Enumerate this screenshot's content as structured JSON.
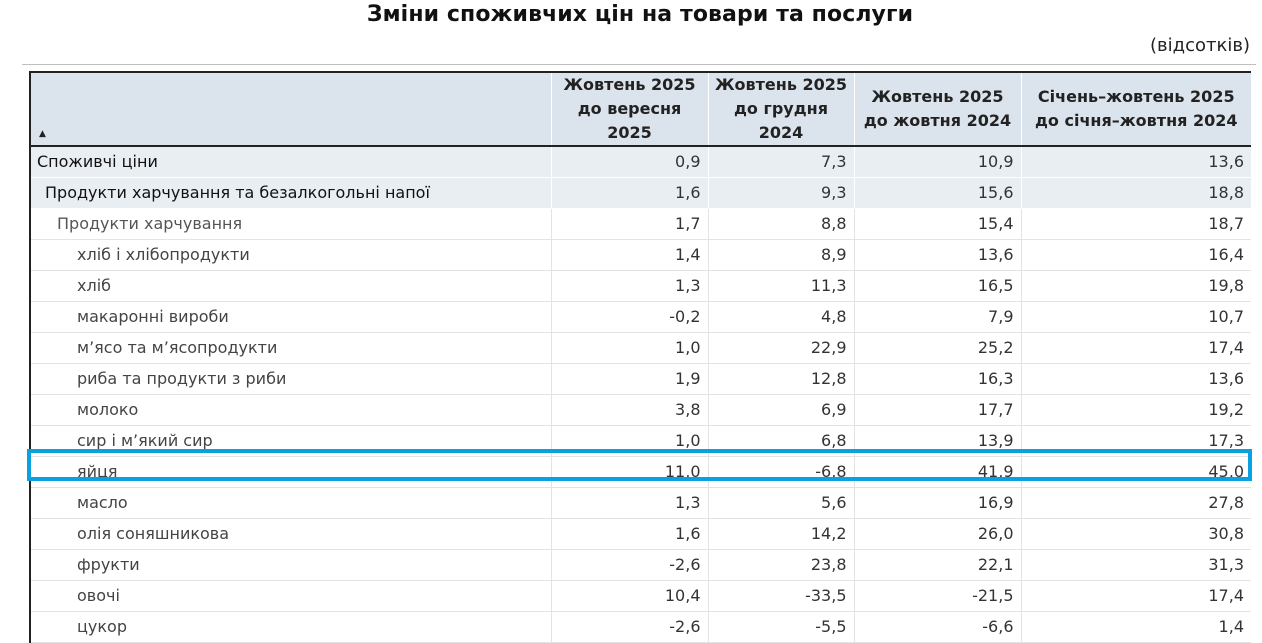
{
  "title": "Зміни споживчих цін на товари та послуги",
  "unit": "(відсотків)",
  "table": {
    "sort_icon": "sort-ascending-icon",
    "columns": [
      "Жовтень 2025 до вересня 2025",
      "Жовтень 2025 до грудня 2024",
      "Жовтень 2025 до жовтня 2024",
      "Січень–жовтень 2025 до січня–жовтня 2024"
    ],
    "rows": [
      {
        "name": "Споживчі ціни",
        "level": 0,
        "values": [
          "0,9",
          "7,3",
          "10,9",
          "13,6"
        ]
      },
      {
        "name": "Продукти харчування та безалкогольні напої",
        "level": 1,
        "values": [
          "1,6",
          "9,3",
          "15,6",
          "18,8"
        ]
      },
      {
        "name": "Продукти харчування",
        "level": 2,
        "values": [
          "1,7",
          "8,8",
          "15,4",
          "18,7"
        ]
      },
      {
        "name": "хліб і хлібопродукти",
        "level": 3,
        "values": [
          "1,4",
          "8,9",
          "13,6",
          "16,4"
        ]
      },
      {
        "name": "хліб",
        "level": 3,
        "values": [
          "1,3",
          "11,3",
          "16,5",
          "19,8"
        ]
      },
      {
        "name": "макаронні вироби",
        "level": 3,
        "values": [
          "-0,2",
          "4,8",
          "7,9",
          "10,7"
        ]
      },
      {
        "name": "м’ясо та м’ясопродукти",
        "level": 3,
        "values": [
          "1,0",
          "22,9",
          "25,2",
          "17,4"
        ]
      },
      {
        "name": "риба та продукти з риби",
        "level": 3,
        "values": [
          "1,9",
          "12,8",
          "16,3",
          "13,6"
        ]
      },
      {
        "name": "молоко",
        "level": 3,
        "values": [
          "3,8",
          "6,9",
          "17,7",
          "19,2"
        ]
      },
      {
        "name": "сир і м’який сир",
        "level": 3,
        "values": [
          "1,0",
          "6,8",
          "13,9",
          "17,3"
        ]
      },
      {
        "name": "яйця",
        "level": 3,
        "values": [
          "11,0",
          "-6,8",
          "41,9",
          "45,0"
        ],
        "highlighted": true
      },
      {
        "name": "масло",
        "level": 3,
        "values": [
          "1,3",
          "5,6",
          "16,9",
          "27,8"
        ]
      },
      {
        "name": "олія соняшникова",
        "level": 3,
        "values": [
          "1,6",
          "14,2",
          "26,0",
          "30,8"
        ]
      },
      {
        "name": "фрукти",
        "level": 3,
        "values": [
          "-2,6",
          "23,8",
          "22,1",
          "31,3"
        ]
      },
      {
        "name": "овочі",
        "level": 3,
        "values": [
          "10,4",
          "-33,5",
          "-21,5",
          "17,4"
        ]
      },
      {
        "name": "цукор",
        "level": 3,
        "values": [
          "-2,6",
          "-5,5",
          "-6,6",
          "1,4"
        ]
      }
    ]
  },
  "colors": {
    "header_bg": "#dbe3ec",
    "group_row_bg": "#e9eef3",
    "highlight_border": "#0aa1e0"
  }
}
